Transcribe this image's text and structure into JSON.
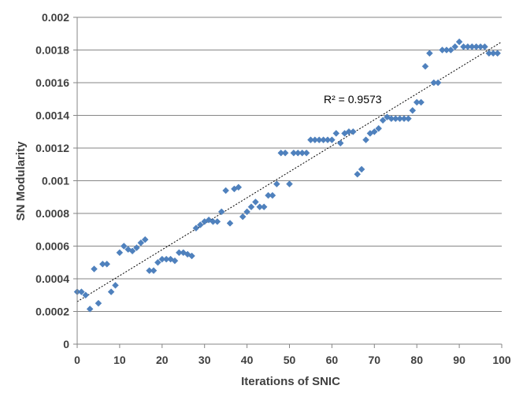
{
  "chart_data": {
    "type": "scatter",
    "xlabel": "Iterations of SNIC",
    "ylabel": "SN Modularity",
    "xlim": [
      0,
      100
    ],
    "ylim": [
      0,
      0.002
    ],
    "x_ticks": [
      0,
      10,
      20,
      30,
      40,
      50,
      60,
      70,
      80,
      90,
      100
    ],
    "y_ticks": [
      0,
      0.0002,
      0.0004,
      0.0006,
      0.0008,
      0.001,
      0.0012,
      0.0014,
      0.0016,
      0.0018,
      0.002
    ],
    "x_tick_labels": [
      "0",
      "10",
      "20",
      "30",
      "40",
      "50",
      "60",
      "70",
      "80",
      "90",
      "100"
    ],
    "y_tick_labels": [
      "0",
      "0.0002",
      "0.0004",
      "0.0006",
      "0.0008",
      "0.001",
      "0.0012",
      "0.0014",
      "0.0016",
      "0.0018",
      "0.002"
    ],
    "grid": "horizontal",
    "marker_color": "#4F81BD",
    "trendline": {
      "type": "linear",
      "intercept": 0.00026,
      "slope": 1.59e-05,
      "style": "dotted",
      "color": "#000000",
      "label": "R² = 0.9573"
    },
    "series": [
      {
        "x": [
          0,
          1,
          2,
          3,
          4,
          5,
          6,
          7,
          8,
          9,
          10,
          11,
          12,
          13,
          14,
          15,
          16,
          17,
          18,
          19,
          20,
          21,
          22,
          23,
          24,
          25,
          26,
          27,
          28,
          29,
          30,
          31,
          32,
          33,
          34,
          35,
          36,
          37,
          38,
          39,
          40,
          41,
          42,
          43,
          44,
          45,
          46,
          47,
          48,
          49,
          50,
          51,
          52,
          53,
          54,
          55,
          56,
          57,
          58,
          59,
          60,
          61,
          62,
          63,
          64,
          65,
          66,
          67,
          68,
          69,
          70,
          71,
          72,
          73,
          74,
          75,
          76,
          77,
          78,
          79,
          80,
          81,
          82,
          83,
          84,
          85,
          86,
          87,
          88,
          89,
          90,
          91,
          92,
          93,
          94,
          95,
          96,
          97,
          98,
          99
        ],
        "y": [
          0.00032,
          0.00032,
          0.0003,
          0.000215,
          0.00046,
          0.00025,
          0.00049,
          0.00049,
          0.00032,
          0.00036,
          0.00056,
          0.0006,
          0.00058,
          0.00057,
          0.00059,
          0.00062,
          0.00064,
          0.00045,
          0.00045,
          0.0005,
          0.00052,
          0.00052,
          0.00052,
          0.00051,
          0.00056,
          0.00056,
          0.00055,
          0.00054,
          0.00071,
          0.00073,
          0.00075,
          0.00076,
          0.00075,
          0.00075,
          0.00081,
          0.00094,
          0.00074,
          0.00095,
          0.00096,
          0.00078,
          0.00081,
          0.00084,
          0.00087,
          0.00084,
          0.00084,
          0.00091,
          0.00091,
          0.00098,
          0.00117,
          0.00117,
          0.00098,
          0.00117,
          0.00117,
          0.00117,
          0.00117,
          0.00125,
          0.00125,
          0.00125,
          0.00125,
          0.00125,
          0.00125,
          0.00129,
          0.00123,
          0.00129,
          0.0013,
          0.0013,
          0.00104,
          0.00107,
          0.00125,
          0.00129,
          0.0013,
          0.00132,
          0.00137,
          0.00139,
          0.00138,
          0.00138,
          0.00138,
          0.00138,
          0.00138,
          0.00143,
          0.00148,
          0.00148,
          0.0017,
          0.00178,
          0.0016,
          0.0016,
          0.0018,
          0.0018,
          0.0018,
          0.00182,
          0.00185,
          0.00182,
          0.00182,
          0.00182,
          0.00182,
          0.00182,
          0.00182,
          0.00178,
          0.00178,
          0.00178
        ]
      }
    ]
  }
}
